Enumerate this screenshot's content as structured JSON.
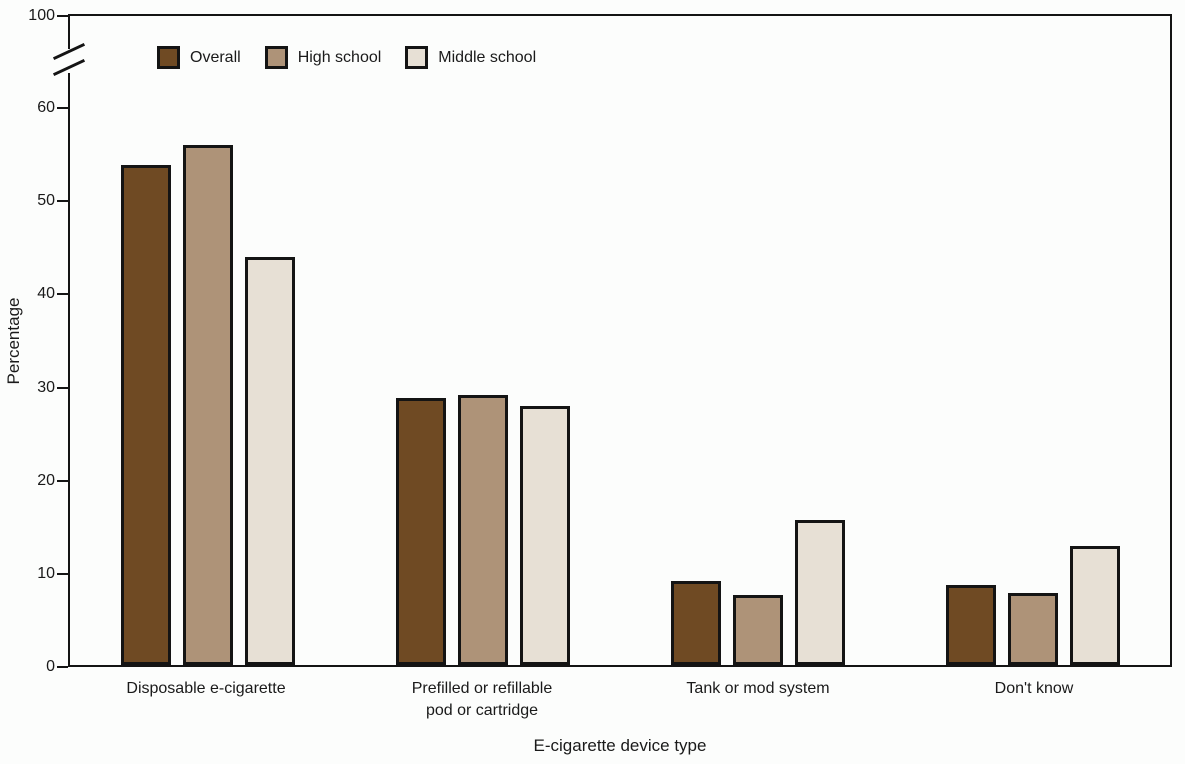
{
  "figure": {
    "background_color": "#fcfdfc",
    "text_color": "#1a1a1a",
    "axis_color": "#141414"
  },
  "chart_data": {
    "type": "bar",
    "title": "",
    "xlabel": "E-cigarette device type",
    "ylabel": "Percentage",
    "categories": [
      "Disposable e-cigarette",
      "Prefilled or refillable pod or cartridge",
      "Tank or mod system",
      "Don't know"
    ],
    "categories_lines": [
      [
        "Disposable e-cigarette"
      ],
      [
        "Prefilled or refillable",
        "pod or cartridge"
      ],
      [
        "Tank or mod system"
      ],
      [
        "Don't know"
      ]
    ],
    "series": [
      {
        "name": "Overall",
        "color": "#6F4A23",
        "values": [
          53.7,
          28.7,
          9.0,
          8.6
        ]
      },
      {
        "name": "High school",
        "color": "#AE9378",
        "values": [
          55.8,
          29.0,
          7.5,
          7.7
        ]
      },
      {
        "name": "Middle school",
        "color": "#E7E0D5",
        "values": [
          43.8,
          27.8,
          15.6,
          12.8
        ]
      }
    ],
    "y_axis_ticks": [
      0,
      10,
      20,
      30,
      40,
      50,
      60,
      100
    ],
    "y_axis_break": {
      "between": [
        60,
        100
      ]
    },
    "ylim": [
      0,
      100
    ],
    "grid": false,
    "legend_position": "top-left-inside",
    "bar_border_color": "#141414"
  }
}
